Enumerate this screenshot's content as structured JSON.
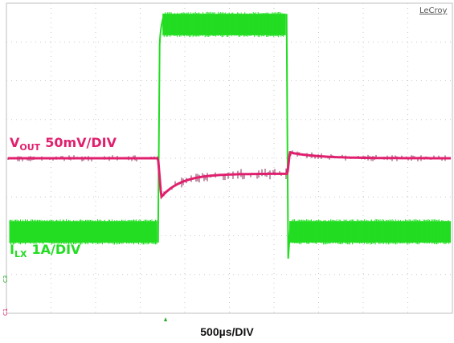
{
  "chart_data": {
    "type": "line",
    "brand": "LeCroy",
    "xlabel": "500µs/DIV",
    "x_divisions": 10,
    "y_divisions": 8,
    "grid": true,
    "step_on_div": 3.4,
    "step_off_div": 6.3,
    "series": [
      {
        "name_main": "V",
        "name_sub": "OUT",
        "scale": "50mV/DIV",
        "color": "#e0206e",
        "baseline_div": 4.0,
        "load_step_undershoot_div": 1.0,
        "settled_during_load_div": 0.4,
        "release_overshoot_div": 0.15
      },
      {
        "name_main": "I",
        "name_sub": "LX",
        "scale": "1A/DIV",
        "color": "#22dd22",
        "low_level_div": 5.9,
        "high_level_div": 0.55,
        "ripple_div": 0.55
      }
    ]
  }
}
